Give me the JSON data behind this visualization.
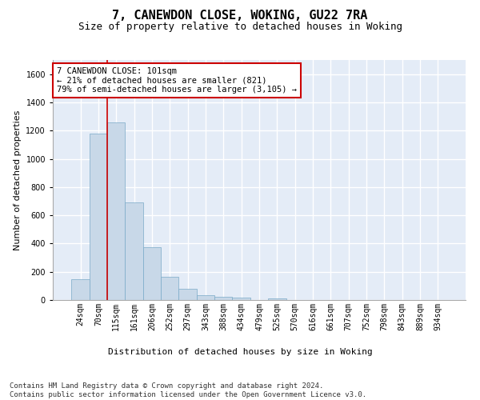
{
  "title1": "7, CANEWDON CLOSE, WOKING, GU22 7RA",
  "title2": "Size of property relative to detached houses in Woking",
  "xlabel": "Distribution of detached houses by size in Woking",
  "ylabel": "Number of detached properties",
  "bar_color": "#c8d8e8",
  "bar_edge_color": "#7aaac8",
  "background_color": "#e4ecf7",
  "grid_color": "#ffffff",
  "categories": [
    "24sqm",
    "70sqm",
    "115sqm",
    "161sqm",
    "206sqm",
    "252sqm",
    "297sqm",
    "343sqm",
    "388sqm",
    "434sqm",
    "479sqm",
    "525sqm",
    "570sqm",
    "616sqm",
    "661sqm",
    "707sqm",
    "752sqm",
    "798sqm",
    "843sqm",
    "889sqm",
    "934sqm"
  ],
  "values": [
    145,
    1180,
    1260,
    690,
    375,
    165,
    80,
    35,
    23,
    17,
    0,
    12,
    0,
    0,
    0,
    0,
    0,
    0,
    0,
    0,
    0
  ],
  "ylim": [
    0,
    1700
  ],
  "yticks": [
    0,
    200,
    400,
    600,
    800,
    1000,
    1200,
    1400,
    1600
  ],
  "annotation_text": "7 CANEWDON CLOSE: 101sqm\n← 21% of detached houses are smaller (821)\n79% of semi-detached houses are larger (3,105) →",
  "annotation_box_color": "#ffffff",
  "annotation_border_color": "#cc0000",
  "footer_text": "Contains HM Land Registry data © Crown copyright and database right 2024.\nContains public sector information licensed under the Open Government Licence v3.0.",
  "vline_bar_index": 2,
  "title1_fontsize": 11,
  "title2_fontsize": 9,
  "xlabel_fontsize": 8,
  "ylabel_fontsize": 8,
  "tick_fontsize": 7,
  "annotation_fontsize": 7.5,
  "footer_fontsize": 6.5
}
